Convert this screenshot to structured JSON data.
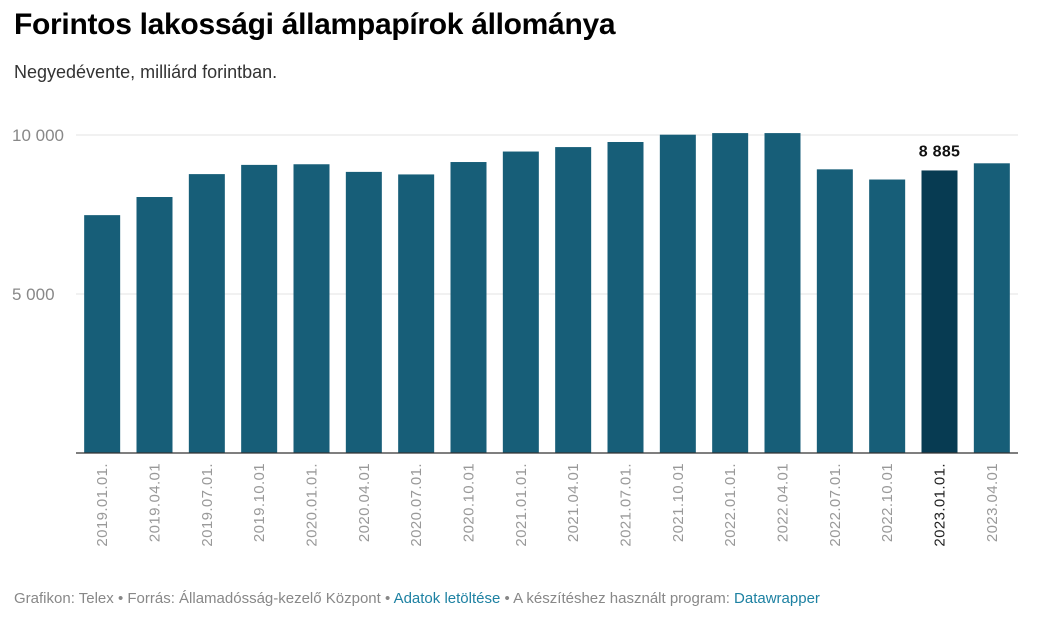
{
  "title": "Forintos lakossági állampapírok állománya",
  "subtitle": "Negyedévente, milliárd forintban.",
  "colors": {
    "bar": "#175e78",
    "bar_highlight": "#073b52",
    "link": "#1d81a2"
  },
  "chart_data": {
    "type": "bar",
    "title": "Forintos lakossági állampapírok állománya",
    "subtitle": "Negyedévente, milliárd forintban.",
    "categories": [
      "2019.01.01.",
      "2019.04.01",
      "2019.07.01.",
      "2019.10.01",
      "2020.01.01.",
      "2020.04.01",
      "2020.07.01.",
      "2020.10.01",
      "2021.01.01.",
      "2021.04.01",
      "2021.07.01.",
      "2021.10.01",
      "2022.01.01.",
      "2022.04.01",
      "2022.07.01.",
      "2022.10.01",
      "2023.01.01.",
      "2023.04.01"
    ],
    "values": [
      7480,
      8050,
      8770,
      9060,
      9080,
      8840,
      8760,
      9150,
      9480,
      9620,
      9780,
      10010,
      10060,
      10060,
      8920,
      8600,
      8885,
      9110
    ],
    "yticks": [
      {
        "value": 5000,
        "label": "5 000"
      },
      {
        "value": 10000,
        "label": "10 000"
      }
    ],
    "ylim": [
      0,
      10000
    ],
    "grid": true,
    "highlight": {
      "index": 16,
      "label": "8 885"
    },
    "xlabel": "",
    "ylabel": ""
  },
  "footer": {
    "prefix": "Grafikon: Telex • Forrás: Államadósság-kezelő Központ • ",
    "download_link": "Adatok letöltése",
    "middle": " • A készítéshez használt program: ",
    "datawrapper_link": "Datawrapper"
  }
}
